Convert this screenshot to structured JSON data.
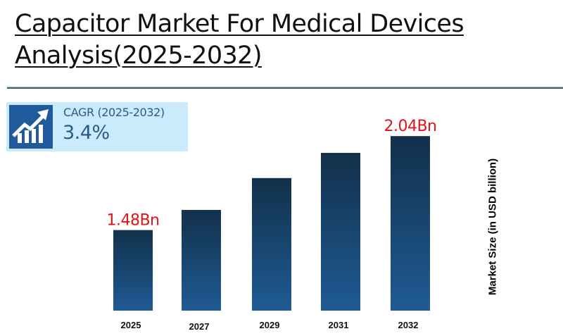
{
  "title": {
    "line1": "Capacitor Market For Medical Devices",
    "line2": "Analysis(2025-2032)"
  },
  "cagr": {
    "icon": "growth-chart-arrow-icon",
    "label": "CAGR (2025-2032)",
    "value": "3.4%"
  },
  "colors": {
    "bar_top": "#12304a",
    "bar_bottom": "#1f5b94",
    "data_label": "#e3131b",
    "cagr_bg": "#c9ebfb",
    "cagr_icon_bg": "#1f5b9c",
    "divider": "#3f6170"
  },
  "chart_data": {
    "type": "bar",
    "title": "Capacitor Market For Medical Devices Analysis(2025-2032)",
    "xlabel": "",
    "ylabel": "Market Size (in USD billion)",
    "categories": [
      "2025",
      "2027",
      "2029",
      "2031",
      "2032"
    ],
    "values": [
      1.48,
      1.6,
      1.79,
      1.94,
      2.04
    ],
    "data_labels": [
      "1.48Bn",
      "",
      "",
      "",
      "2.04Bn"
    ],
    "ylim": [
      1.0,
      2.15
    ],
    "grid": false,
    "legend": "none"
  }
}
